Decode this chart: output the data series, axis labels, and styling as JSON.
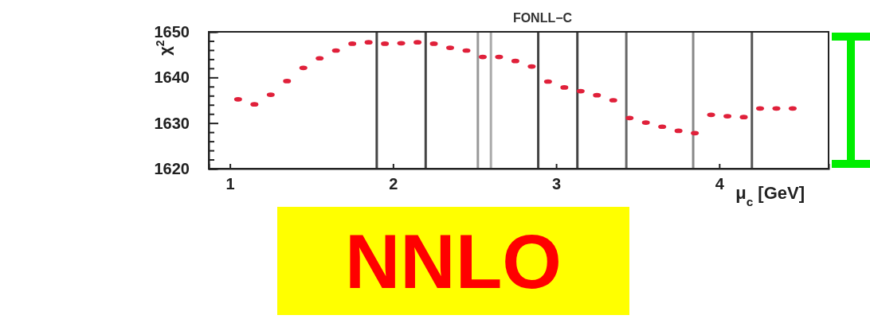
{
  "chart_data": {
    "type": "scatter",
    "title": "FONLL−C",
    "xlabel": "μ$_{c}$ [GeV]",
    "ylabel": "χ$^{2}$",
    "x": [
      1.05,
      1.15,
      1.25,
      1.35,
      1.45,
      1.55,
      1.65,
      1.75,
      1.85,
      1.95,
      2.05,
      2.15,
      2.25,
      2.35,
      2.45,
      2.55,
      2.65,
      2.75,
      2.85,
      2.95,
      3.05,
      3.15,
      3.25,
      3.35,
      3.45,
      3.55,
      3.65,
      3.75,
      3.85,
      3.95,
      4.05,
      4.15,
      4.25,
      4.35,
      4.45
    ],
    "series": [
      {
        "color": "#e0203a",
        "values": [
          1635.2,
          1634.1,
          1636.2,
          1639.2,
          1642.1,
          1644.2,
          1645.9,
          1647.4,
          1647.7,
          1647.4,
          1647.5,
          1647.7,
          1647.4,
          1646.5,
          1645.9,
          1644.5,
          1644.5,
          1643.6,
          1642.4,
          1639.1,
          1637.8,
          1637.0,
          1636.1,
          1635.0,
          1631.1,
          1630.1,
          1629.2,
          1628.3,
          1627.8,
          1631.8,
          1631.5,
          1631.3,
          1633.2,
          1633.2,
          1633.2
        ]
      }
    ],
    "marker": "circle",
    "xlim": [
      0.87,
      4.67
    ],
    "xticks": [
      1,
      2,
      3,
      4
    ],
    "ylim": [
      1620,
      1650
    ],
    "yticks": [
      1620,
      {
        "value": 1622,
        "label": null
      },
      {
        "value": 1624,
        "label": null
      },
      {
        "value": 1626,
        "label": null
      },
      {
        "value": 1628,
        "label": null
      },
      1630,
      {
        "value": 1632,
        "label": null
      },
      {
        "value": 1634,
        "label": null
      },
      {
        "value": 1636,
        "label": null
      },
      {
        "value": 1638,
        "label": null
      },
      1640,
      {
        "value": 1642,
        "label": null
      },
      {
        "value": 1644,
        "label": null
      },
      {
        "value": 1646,
        "label": null
      },
      {
        "value": 1648,
        "label": null
      },
      1650
    ],
    "ref_lines": [
      {
        "axis": "x",
        "value": 1.9,
        "color": "#444444"
      },
      {
        "axis": "x",
        "value": 2.2,
        "color": "#444444"
      },
      {
        "axis": "x",
        "value": 2.52,
        "color": "#999999"
      },
      {
        "axis": "x",
        "value": 2.6,
        "color": "#aaaaaa"
      },
      {
        "axis": "x",
        "value": 2.89,
        "color": "#444444"
      },
      {
        "axis": "x",
        "value": 3.13,
        "color": "#444444"
      },
      {
        "axis": "x",
        "value": 3.43,
        "color": "#666666"
      },
      {
        "axis": "x",
        "value": 3.84,
        "color": "#888888"
      },
      {
        "axis": "x",
        "value": 4.2,
        "color": "#555555"
      }
    ],
    "grid": false,
    "annotations": [
      "NNLO"
    ]
  }
}
